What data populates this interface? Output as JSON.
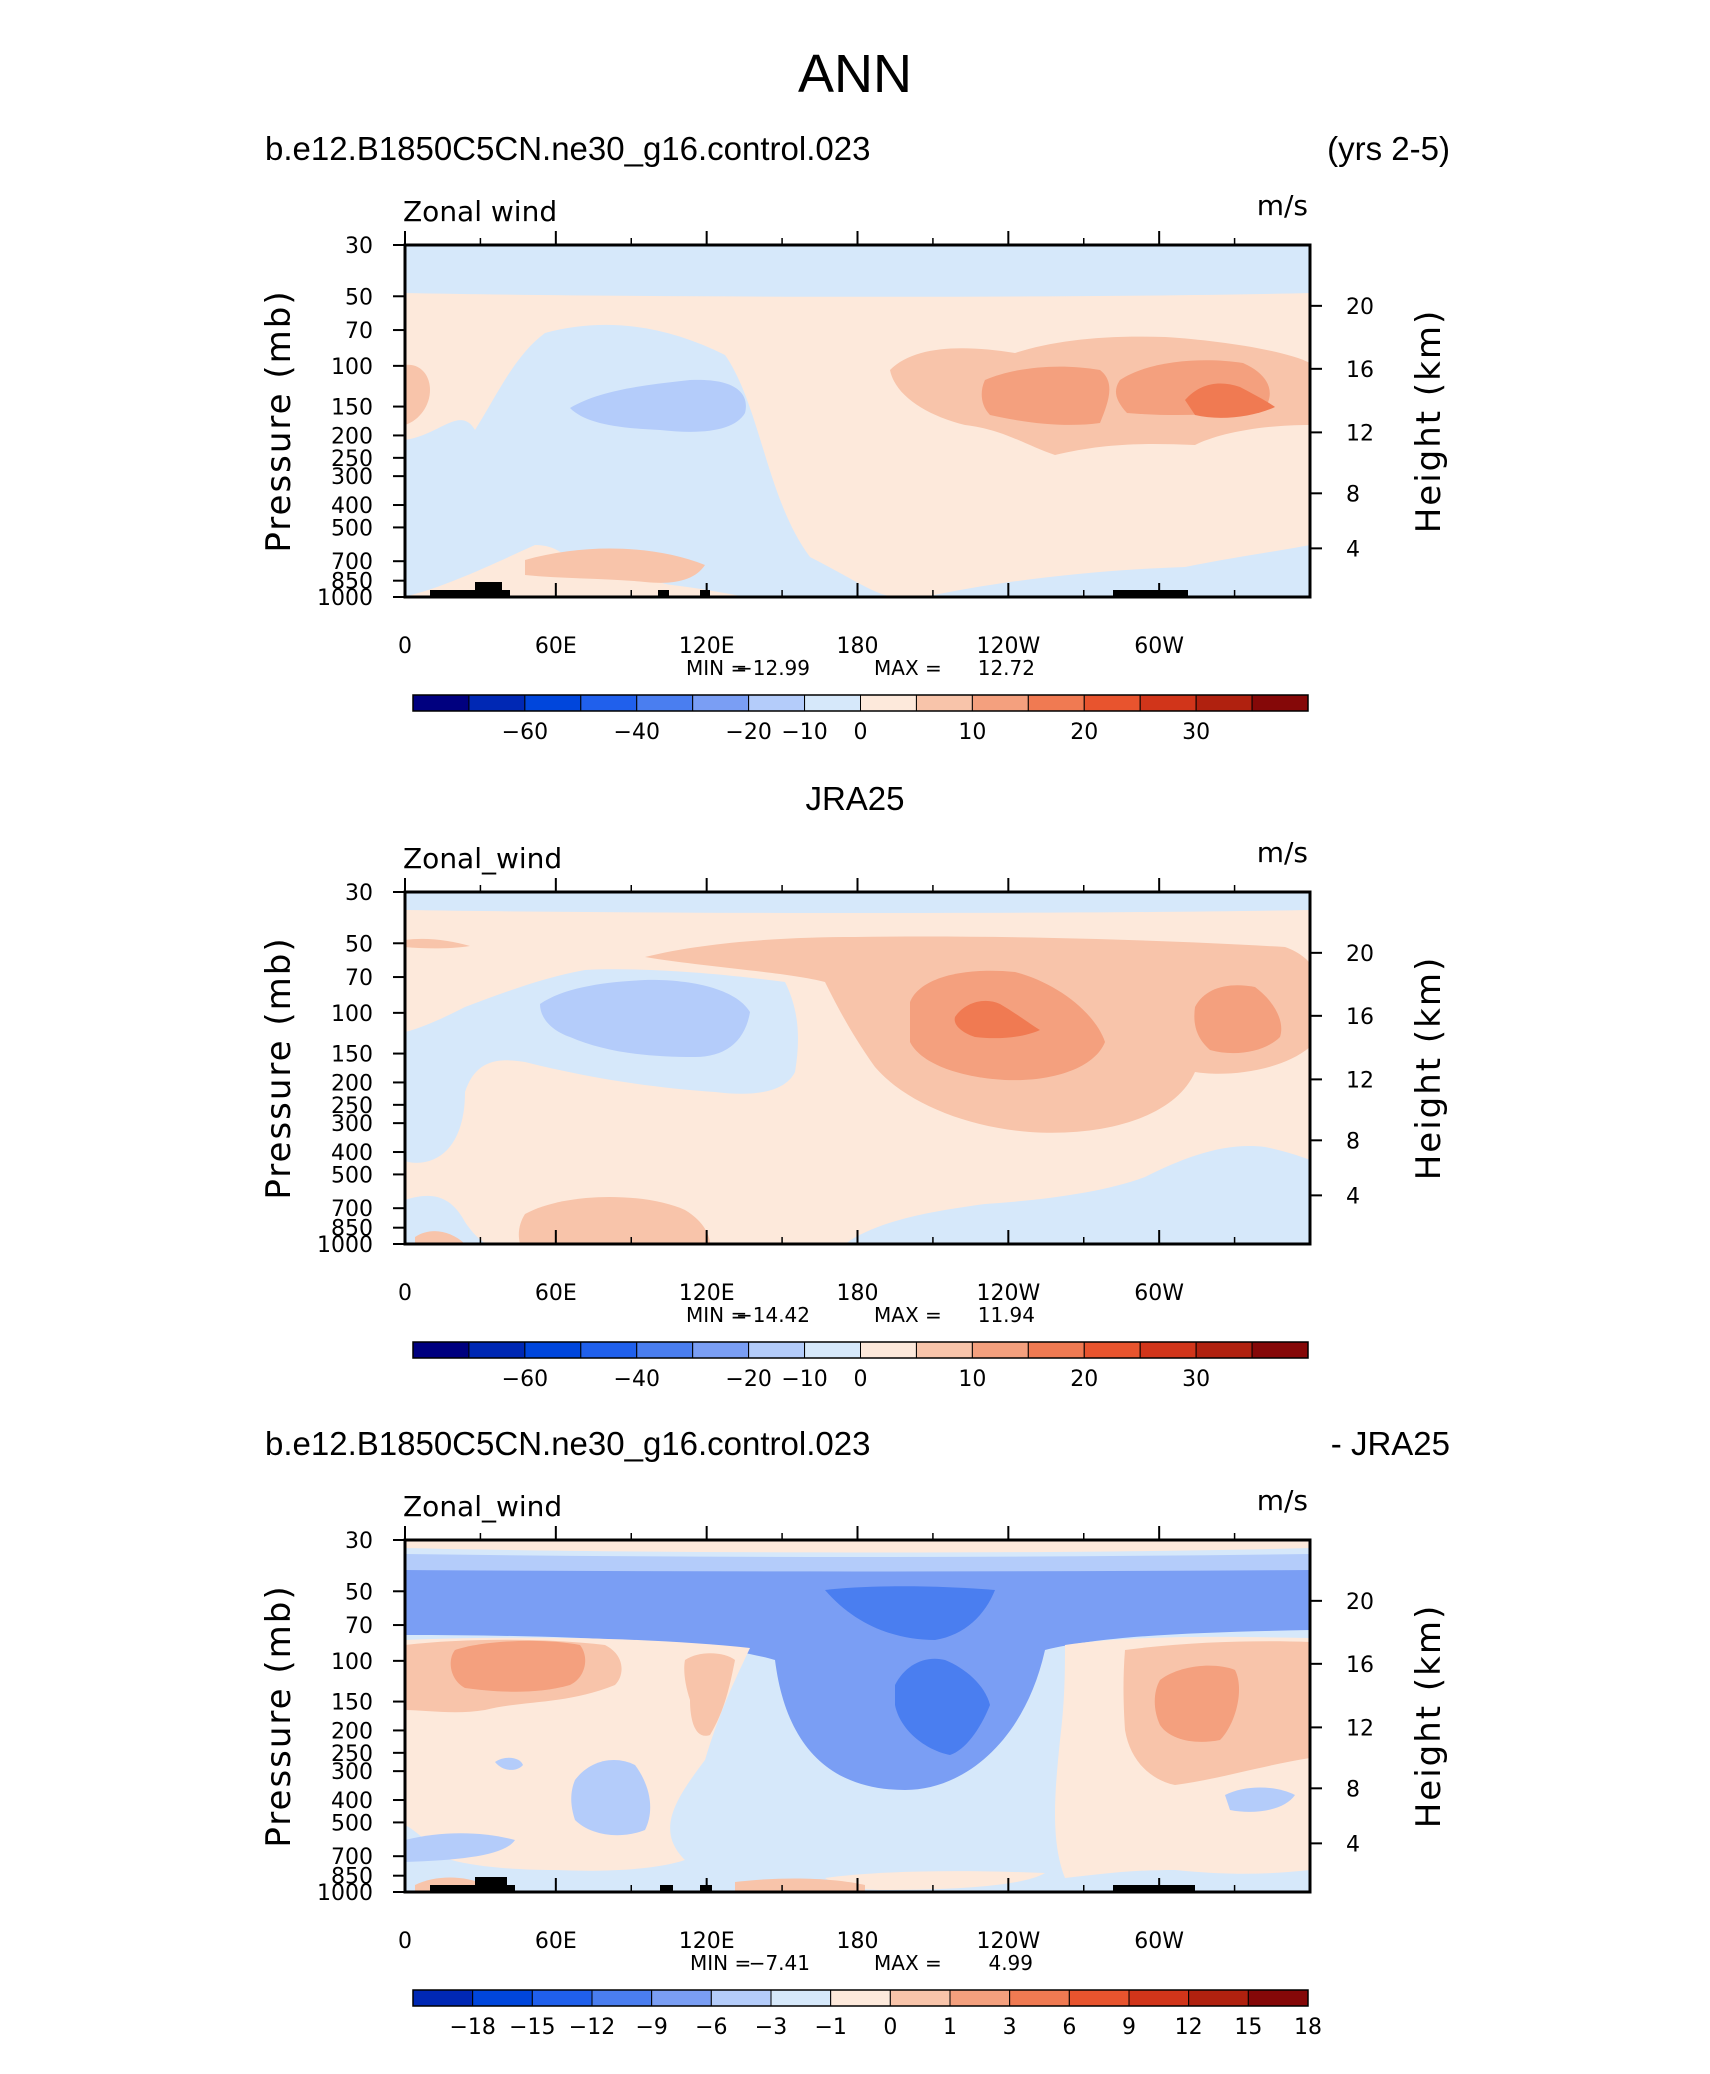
{
  "figure": {
    "title": "ANN"
  },
  "panels": [
    {
      "header_left": "b.e12.B1850C5CN.ne30_g16.control.023",
      "header_right": "(yrs 2-5)",
      "field_label": "Zonal wind",
      "units": "m/s",
      "stats": {
        "min_label": "MIN =",
        "min": "−12.99",
        "max_label": "MAX =",
        "max": "12.72"
      },
      "colorbar_labels": [
        "−60",
        "−40",
        "−20",
        "−10",
        "0",
        "10",
        "20",
        "30"
      ]
    },
    {
      "header_center": "JRA25",
      "field_label": "Zonal_wind",
      "units": "m/s",
      "stats": {
        "min_label": "MIN =",
        "min": "−14.42",
        "max_label": "MAX =",
        "max": "11.94"
      },
      "colorbar_labels": [
        "−60",
        "−40",
        "−20",
        "−10",
        "0",
        "10",
        "20",
        "30"
      ]
    },
    {
      "header_left": "b.e12.B1850C5CN.ne30_g16.control.023",
      "header_right": "- JRA25",
      "field_label": "Zonal_wind",
      "units": "m/s",
      "stats": {
        "min_label": "MIN =",
        "min": "−7.41",
        "max_label": "MAX =",
        "max": "4.99"
      },
      "colorbar_labels": [
        "−18",
        "−15",
        "−12",
        "−9",
        "−6",
        "−3",
        "−1",
        "0",
        "1",
        "3",
        "6",
        "9",
        "12",
        "15",
        "18"
      ]
    }
  ],
  "chart_data": [
    {
      "type": "heatmap",
      "title": "b.e12.B1850C5CN.ne30_g16.control.023",
      "subtitle": "(yrs 2-5)",
      "field": "Zonal wind",
      "units": "m/s",
      "x_axis": {
        "ticks": [
          "0",
          "60E",
          "120E",
          "180",
          "120W",
          "60W"
        ],
        "xlim_deg": [
          0,
          360
        ]
      },
      "y_axis": {
        "label": "Pressure (mb)",
        "ticks": [
          "30",
          "50",
          "70",
          "100",
          "150",
          "200",
          "250",
          "300",
          "400",
          "500",
          "700",
          "850",
          "1000"
        ],
        "ylim_mb": [
          30,
          1000
        ],
        "scale": "log"
      },
      "y2_axis": {
        "label": "Height (km)",
        "ticks": [
          "4",
          "8",
          "12",
          "16",
          "20"
        ]
      },
      "colorbar_levels": [
        -60,
        -50,
        -40,
        -30,
        -20,
        -15,
        -10,
        -5,
        0,
        5,
        10,
        15,
        20,
        25,
        30,
        35
      ],
      "min": -12.99,
      "max": 12.72,
      "features": [
        {
          "type": "min",
          "lon": 110,
          "p_mb": 150,
          "value": -12.99,
          "band": [
            -15,
            -10
          ]
        },
        {
          "type": "max",
          "lon": 322,
          "p_mb": 150,
          "value": 12.72,
          "band": [
            10,
            15
          ]
        },
        {
          "type": "max",
          "lon": 243,
          "p_mb": 150,
          "band": [
            5,
            10
          ]
        },
        {
          "type": "easterly_layer",
          "p_mb": [
            30,
            55
          ],
          "band": [
            -5,
            0
          ]
        }
      ]
    },
    {
      "type": "heatmap",
      "title": "JRA25",
      "field": "Zonal_wind",
      "units": "m/s",
      "x_axis": {
        "ticks": [
          "0",
          "60E",
          "120E",
          "180",
          "120W",
          "60W"
        ],
        "xlim_deg": [
          0,
          360
        ]
      },
      "y_axis": {
        "label": "Pressure (mb)",
        "ticks": [
          "30",
          "50",
          "70",
          "100",
          "150",
          "200",
          "250",
          "300",
          "400",
          "500",
          "700",
          "850",
          "1000"
        ],
        "ylim_mb": [
          30,
          1000
        ],
        "scale": "log"
      },
      "y2_axis": {
        "label": "Height (km)",
        "ticks": [
          "4",
          "8",
          "12",
          "16",
          "20"
        ]
      },
      "colorbar_levels": [
        -60,
        -50,
        -40,
        -30,
        -20,
        -15,
        -10,
        -5,
        0,
        5,
        10,
        15,
        20,
        25,
        30,
        35
      ],
      "min": -14.42,
      "max": 11.94,
      "features": [
        {
          "type": "min",
          "lon": 85,
          "p_mb": 150,
          "value": -14.42,
          "band": [
            -15,
            -10
          ]
        },
        {
          "type": "max",
          "lon": 232,
          "p_mb": 150,
          "value": 11.94,
          "band": [
            10,
            15
          ]
        },
        {
          "type": "max",
          "lon": 330,
          "p_mb": 140,
          "band": [
            5,
            10
          ]
        }
      ]
    },
    {
      "type": "heatmap",
      "title": "b.e12.B1850C5CN.ne30_g16.control.023",
      "subtitle": "- JRA25",
      "field": "Zonal_wind",
      "units": "m/s",
      "x_axis": {
        "ticks": [
          "0",
          "60E",
          "120E",
          "180",
          "120W",
          "60W"
        ],
        "xlim_deg": [
          0,
          360
        ]
      },
      "y_axis": {
        "label": "Pressure (mb)",
        "ticks": [
          "30",
          "50",
          "70",
          "100",
          "150",
          "200",
          "250",
          "300",
          "400",
          "500",
          "700",
          "850",
          "1000"
        ],
        "ylim_mb": [
          30,
          1000
        ],
        "scale": "log"
      },
      "y2_axis": {
        "label": "Height (km)",
        "ticks": [
          "4",
          "8",
          "12",
          "16",
          "20"
        ]
      },
      "colorbar_levels": [
        -18,
        -15,
        -12,
        -9,
        -6,
        -3,
        -1,
        0,
        1,
        3,
        6,
        9,
        12,
        15,
        18
      ],
      "min": -7.41,
      "max": 4.99,
      "features": [
        {
          "type": "min",
          "lon": 210,
          "p_mb": 150,
          "value": -7.41,
          "band": [
            -9,
            -6
          ]
        },
        {
          "type": "min",
          "lon": 210,
          "p_mb": 58,
          "band": [
            -9,
            -6
          ]
        },
        {
          "type": "max",
          "lon": 20,
          "p_mb": 120,
          "band": [
            3,
            6
          ]
        },
        {
          "type": "max",
          "lon": 310,
          "p_mb": 200,
          "band": [
            3,
            6
          ]
        }
      ]
    }
  ],
  "colors": {
    "scale16": [
      "#00007f",
      "#0028b4",
      "#0046dc",
      "#2060ec",
      "#4a7ef0",
      "#7a9ef4",
      "#b4ccfa",
      "#d6e8fa",
      "#fde9db",
      "#f8c4aa",
      "#f4a07e",
      "#f07a52",
      "#e8542e",
      "#d1351a",
      "#b0210f",
      "#850808"
    ],
    "land": "#000000"
  }
}
